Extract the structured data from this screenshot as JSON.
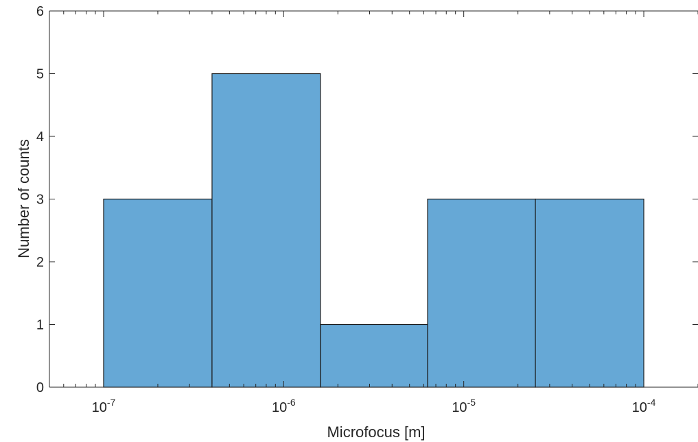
{
  "chart_data": {
    "type": "bar",
    "subtype": "histogram",
    "x_scale": "log",
    "xlabel": "Microfocus [m]",
    "ylabel": "Number of counts",
    "xlim": [
      5e-08,
      0.0002
    ],
    "ylim": [
      0,
      6
    ],
    "bins": [
      {
        "x_start": 1e-07,
        "x_end": 4e-07,
        "value": 3
      },
      {
        "x_start": 4e-07,
        "x_end": 1.6e-06,
        "value": 5
      },
      {
        "x_start": 1.6e-06,
        "x_end": 6.3e-06,
        "value": 1
      },
      {
        "x_start": 6.3e-06,
        "x_end": 2.5e-05,
        "value": 3
      },
      {
        "x_start": 2.5e-05,
        "x_end": 0.0001,
        "value": 3
      }
    ],
    "x_ticks": [
      {
        "value": 1e-07,
        "base": "10",
        "exp": "-7"
      },
      {
        "value": 1e-06,
        "base": "10",
        "exp": "-6"
      },
      {
        "value": 1e-05,
        "base": "10",
        "exp": "-5"
      },
      {
        "value": 0.0001,
        "base": "10",
        "exp": "-4"
      }
    ],
    "y_ticks": [
      "0",
      "1",
      "2",
      "3",
      "4",
      "5",
      "6"
    ],
    "grid": false,
    "bar_color": "#66a8d6",
    "edge_color": "#1a1a1a",
    "axis_color": "#262626"
  }
}
